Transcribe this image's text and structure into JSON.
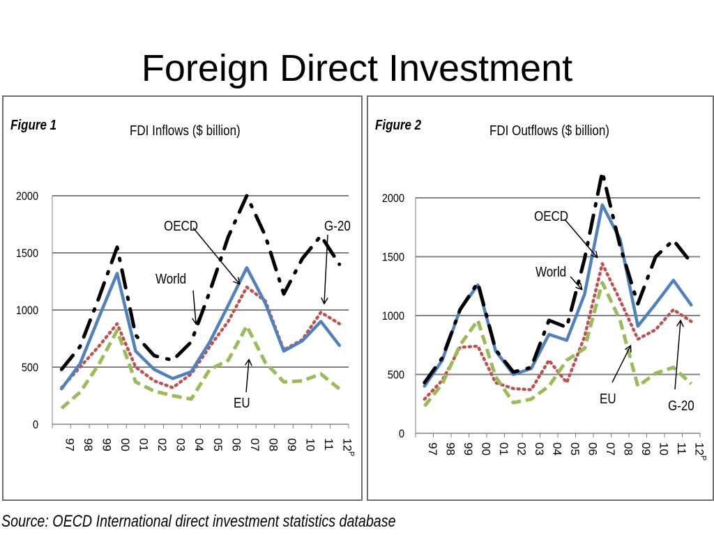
{
  "slide": {
    "title": "Foreign Direct Investment",
    "source": "Source: OECD International direct investment statistics database"
  },
  "colors": {
    "world": "#c0504d",
    "oecd": "#4f81bd",
    "g20": "#000000",
    "eu": "#9bbb59",
    "grid": "#808080",
    "axis": "#808080",
    "panel_border": "#6e6e6e"
  },
  "chart_data": [
    {
      "type": "line",
      "figure_label": "Figure 1",
      "title": "FDI Inflows ($ billion)",
      "categories": [
        "97",
        "98",
        "99",
        "00",
        "01",
        "02",
        "03",
        "04",
        "05",
        "06",
        "07",
        "08",
        "09",
        "10",
        "11",
        "12"
      ],
      "category_superscript": "P",
      "ylim": [
        0,
        2000
      ],
      "yticks": [
        "0",
        "500",
        "1000",
        "1500",
        "2000"
      ],
      "grid": "horizontal",
      "series": [
        {
          "name": "World",
          "style": "dotted",
          "values": [
            320,
            500,
            680,
            880,
            500,
            380,
            320,
            440,
            680,
            900,
            1200,
            1080,
            650,
            740,
            980,
            880
          ]
        },
        {
          "name": "OECD",
          "style": "solid",
          "values": [
            310,
            530,
            930,
            1320,
            640,
            480,
            400,
            460,
            720,
            1040,
            1370,
            1060,
            640,
            730,
            900,
            690
          ]
        },
        {
          "name": "G-20",
          "style": "dash-dot",
          "values": [
            480,
            680,
            1100,
            1550,
            780,
            600,
            560,
            720,
            1160,
            1640,
            2000,
            1650,
            1140,
            1450,
            1650,
            1400
          ]
        },
        {
          "name": "EU",
          "style": "dashed",
          "values": [
            140,
            280,
            520,
            820,
            370,
            290,
            250,
            220,
            480,
            560,
            860,
            540,
            370,
            380,
            440,
            310
          ]
        }
      ],
      "annotations": [
        "OECD",
        "G-20",
        "World",
        "EU"
      ]
    },
    {
      "type": "line",
      "figure_label": "Figure 2",
      "title": "FDI Outflows ($ billion)",
      "categories": [
        "97",
        "98",
        "99",
        "00",
        "01",
        "02",
        "03",
        "04",
        "05",
        "06",
        "07",
        "08",
        "09",
        "10",
        "11",
        "12"
      ],
      "category_superscript": "P",
      "ylim": [
        0,
        2000
      ],
      "yticks": [
        "0",
        "500",
        "1000",
        "1500",
        "2000"
      ],
      "grid": "horizontal",
      "series": [
        {
          "name": "World",
          "style": "dotted",
          "values": [
            290,
            450,
            730,
            740,
            430,
            380,
            370,
            620,
            430,
            820,
            1440,
            1130,
            800,
            880,
            1050,
            950
          ]
        },
        {
          "name": "OECD",
          "style": "solid",
          "values": [
            400,
            620,
            1050,
            1260,
            700,
            500,
            550,
            840,
            790,
            1180,
            1940,
            1650,
            910,
            1100,
            1300,
            1090
          ]
        },
        {
          "name": "G-20",
          "style": "dash-dot",
          "values": [
            430,
            640,
            1050,
            1280,
            710,
            520,
            560,
            960,
            900,
            1480,
            2220,
            1590,
            1100,
            1500,
            1640,
            1450
          ]
        },
        {
          "name": "EU",
          "style": "dashed",
          "values": [
            230,
            420,
            750,
            960,
            480,
            260,
            290,
            400,
            620,
            720,
            1280,
            960,
            400,
            510,
            560,
            420
          ]
        }
      ],
      "annotations": [
        "OECD",
        "World",
        "EU",
        "G-20"
      ]
    }
  ]
}
